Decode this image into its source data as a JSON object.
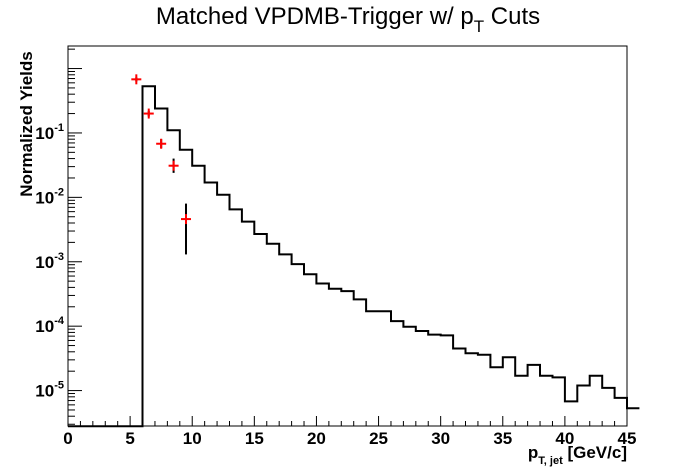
{
  "chart_data": {
    "type": "histogram",
    "title": "Matched VPDMB-Trigger w/ p_T Cuts",
    "title_main": "Matched VPDMB-Trigger w/ p",
    "title_sub": "T",
    "title_end": " Cuts",
    "xlabel_main": "p",
    "xlabel_sub": "T, jet",
    "xlabel_unit": " [GeV/c]",
    "ylabel": "Normalized Yields",
    "xlim": [
      0,
      45
    ],
    "ylim_log10": [
      -5.55,
      0.35
    ],
    "log_y": true,
    "x_ticks": [
      0,
      5,
      10,
      15,
      20,
      25,
      30,
      35,
      40,
      45
    ],
    "x_tick_labels": [
      "0",
      "5",
      "10",
      "15",
      "20",
      "25",
      "30",
      "35",
      "40",
      "45"
    ],
    "y_tick_labels": [
      {
        "base": "10",
        "exp": "-5"
      },
      {
        "base": "10",
        "exp": "-4"
      },
      {
        "base": "10",
        "exp": "-3"
      },
      {
        "base": "10",
        "exp": "-2"
      },
      {
        "base": "10",
        "exp": "-1"
      }
    ],
    "y_tick_powers": [
      -5,
      -4,
      -3,
      -2,
      -1
    ],
    "grid": false,
    "histogram": {
      "bin_width": 1,
      "x_start": 0,
      "color": "#000000",
      "values": [
        2.8e-06,
        2.8e-06,
        2.8e-06,
        2.8e-06,
        2.8e-06,
        2.8e-06,
        0.53,
        0.24,
        0.11,
        0.055,
        0.031,
        0.017,
        0.011,
        0.0065,
        0.0042,
        0.0027,
        0.0019,
        0.0013,
        0.00092,
        0.00064,
        0.00046,
        0.00038,
        0.00035,
        0.00026,
        0.00017,
        0.00017,
        0.00012,
        9.8e-05,
        8.4e-05,
        7.4e-05,
        7.2e-05,
        4.5e-05,
        3.8e-05,
        3.6e-05,
        2.3e-05,
        3.3e-05,
        1.7e-05,
        2.5e-05,
        1.7e-05,
        1.6e-05,
        6.8e-06,
        1.2e-05,
        1.7e-05,
        1.1e-05,
        7.7e-06,
        5.3e-06
      ]
    },
    "points": {
      "color": "#ff0000",
      "error_color": "#000000",
      "data": [
        {
          "x": 5.5,
          "y": 0.68,
          "ylo": 0.63,
          "yhi": 0.73
        },
        {
          "x": 6.5,
          "y": 0.2,
          "ylo": 0.18,
          "yhi": 0.22
        },
        {
          "x": 7.5,
          "y": 0.068,
          "ylo": 0.058,
          "yhi": 0.08
        },
        {
          "x": 8.5,
          "y": 0.031,
          "ylo": 0.024,
          "yhi": 0.04
        },
        {
          "x": 9.5,
          "y": 0.0046,
          "ylo": 0.0013,
          "yhi": 0.008
        }
      ]
    }
  }
}
